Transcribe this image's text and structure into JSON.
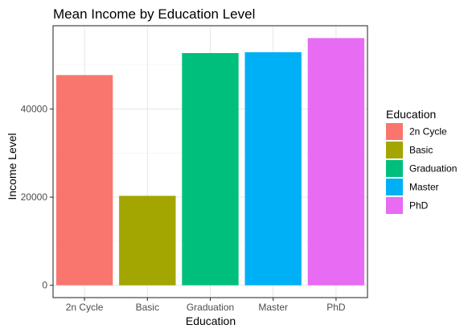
{
  "chart_data": {
    "type": "bar",
    "title": "Mean Income by Education Level",
    "xlabel": "Education",
    "ylabel": "Income Level",
    "categories": [
      "2n Cycle",
      "Basic",
      "Graduation",
      "Master",
      "PhD"
    ],
    "values": [
      47700,
      20300,
      52700,
      52900,
      56100
    ],
    "colors": [
      "#F8766D",
      "#A3A500",
      "#00BF7D",
      "#00B0F6",
      "#E76BF3"
    ],
    "ylim": [
      -2800,
      58900
    ],
    "yticks": [
      0,
      20000,
      40000
    ],
    "yticks_minor": [
      10000,
      30000,
      50000
    ],
    "grid": true,
    "legend": {
      "title": "Education",
      "position": "right",
      "entries": [
        "2n Cycle",
        "Basic",
        "Graduation",
        "Master",
        "PhD"
      ]
    }
  }
}
